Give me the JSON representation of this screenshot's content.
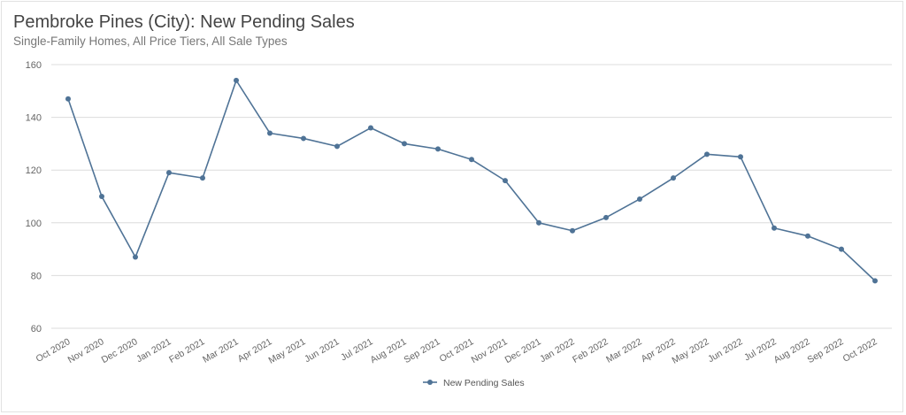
{
  "header": {
    "title": "Pembroke Pines (City): New Pending Sales",
    "subtitle": "Single-Family Homes, All Price Tiers, All Sale Types"
  },
  "colors": {
    "series": "#4f7396",
    "grid": "#dcdcdc",
    "text": "#666666"
  },
  "chart_data": {
    "type": "line",
    "title": "Pembroke Pines (City): New Pending Sales",
    "subtitle": "Single-Family Homes, All Price Tiers, All Sale Types",
    "xlabel": "",
    "ylabel": "",
    "ylim": [
      60,
      160
    ],
    "yticks": [
      60,
      80,
      100,
      120,
      140,
      160
    ],
    "grid": true,
    "legend_position": "bottom-center",
    "categories": [
      "Oct 2020",
      "Nov 2020",
      "Dec 2020",
      "Jan 2021",
      "Feb 2021",
      "Mar 2021",
      "Apr 2021",
      "May 2021",
      "Jun 2021",
      "Jul 2021",
      "Aug 2021",
      "Sep 2021",
      "Oct 2021",
      "Nov 2021",
      "Dec 2021",
      "Jan 2022",
      "Feb 2022",
      "Mar 2022",
      "Apr 2022",
      "May 2022",
      "Jun 2022",
      "Jul 2022",
      "Aug 2022",
      "Sep 2022",
      "Oct 2022"
    ],
    "series": [
      {
        "name": "New Pending Sales",
        "values": [
          147,
          110,
          87,
          119,
          117,
          154,
          134,
          132,
          129,
          136,
          130,
          128,
          124,
          116,
          100,
          97,
          102,
          109,
          117,
          126,
          125,
          98,
          95,
          90,
          78
        ]
      }
    ]
  }
}
